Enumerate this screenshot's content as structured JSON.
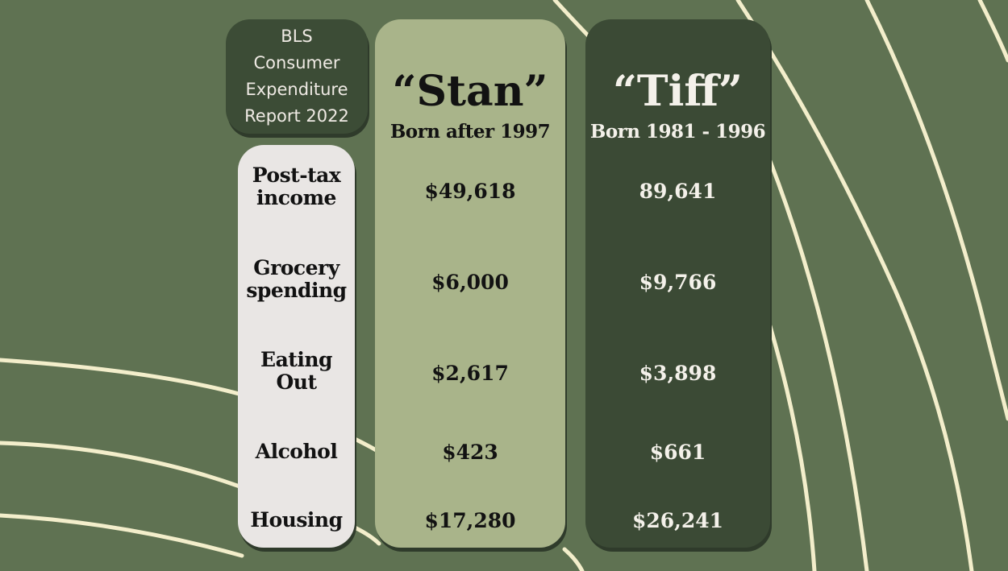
{
  "source": {
    "lines": [
      "BLS",
      "Consumer",
      "Expenditure",
      "Report 2022"
    ]
  },
  "columns": [
    {
      "name": "“Stan”",
      "subtitle": "Born after 1997",
      "values": [
        "$49,618",
        "$6,000",
        "$2,617",
        "$423",
        "$17,280"
      ]
    },
    {
      "name": "“Tiff”",
      "subtitle": "Born 1981 - 1996",
      "values": [
        "89,641",
        "$9,766",
        "$3,898",
        "$661",
        "$26,241"
      ]
    }
  ],
  "rows": [
    {
      "label_lines": [
        "Post-tax",
        "income"
      ]
    },
    {
      "label_lines": [
        "Grocery",
        "spending"
      ]
    },
    {
      "label_lines": [
        "Eating",
        "Out"
      ]
    },
    {
      "label_lines": [
        "Alcohol"
      ]
    },
    {
      "label_lines": [
        "Housing"
      ]
    }
  ],
  "colors": {
    "background": "#5f7252",
    "stan_card": "#a9b48a",
    "tiff_card": "#3b4a35",
    "label_card": "#e9e6e4",
    "arc_lines": "#f5f0cf"
  }
}
